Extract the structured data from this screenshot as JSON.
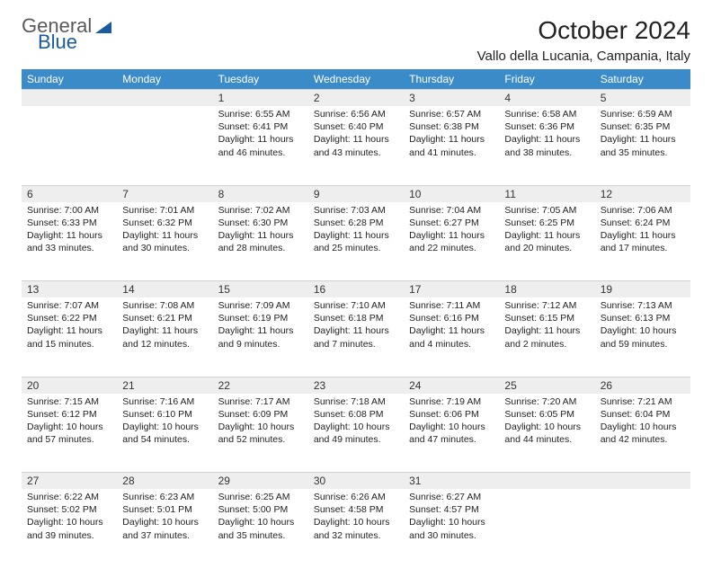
{
  "brand": {
    "word1": "General",
    "word2": "Blue"
  },
  "title": "October 2024",
  "location": "Vallo della Lucania, Campania, Italy",
  "colors": {
    "header_bg": "#3b8bc9",
    "header_fg": "#ffffff",
    "daynum_bg": "#eeeeee",
    "brand_blue": "#1a5a9e",
    "brand_gray": "#5a5a5a"
  },
  "dayNames": [
    "Sunday",
    "Monday",
    "Tuesday",
    "Wednesday",
    "Thursday",
    "Friday",
    "Saturday"
  ],
  "weeks": [
    [
      null,
      null,
      {
        "n": "1",
        "sr": "6:55 AM",
        "ss": "6:41 PM",
        "dl": "11 hours and 46 minutes."
      },
      {
        "n": "2",
        "sr": "6:56 AM",
        "ss": "6:40 PM",
        "dl": "11 hours and 43 minutes."
      },
      {
        "n": "3",
        "sr": "6:57 AM",
        "ss": "6:38 PM",
        "dl": "11 hours and 41 minutes."
      },
      {
        "n": "4",
        "sr": "6:58 AM",
        "ss": "6:36 PM",
        "dl": "11 hours and 38 minutes."
      },
      {
        "n": "5",
        "sr": "6:59 AM",
        "ss": "6:35 PM",
        "dl": "11 hours and 35 minutes."
      }
    ],
    [
      {
        "n": "6",
        "sr": "7:00 AM",
        "ss": "6:33 PM",
        "dl": "11 hours and 33 minutes."
      },
      {
        "n": "7",
        "sr": "7:01 AM",
        "ss": "6:32 PM",
        "dl": "11 hours and 30 minutes."
      },
      {
        "n": "8",
        "sr": "7:02 AM",
        "ss": "6:30 PM",
        "dl": "11 hours and 28 minutes."
      },
      {
        "n": "9",
        "sr": "7:03 AM",
        "ss": "6:28 PM",
        "dl": "11 hours and 25 minutes."
      },
      {
        "n": "10",
        "sr": "7:04 AM",
        "ss": "6:27 PM",
        "dl": "11 hours and 22 minutes."
      },
      {
        "n": "11",
        "sr": "7:05 AM",
        "ss": "6:25 PM",
        "dl": "11 hours and 20 minutes."
      },
      {
        "n": "12",
        "sr": "7:06 AM",
        "ss": "6:24 PM",
        "dl": "11 hours and 17 minutes."
      }
    ],
    [
      {
        "n": "13",
        "sr": "7:07 AM",
        "ss": "6:22 PM",
        "dl": "11 hours and 15 minutes."
      },
      {
        "n": "14",
        "sr": "7:08 AM",
        "ss": "6:21 PM",
        "dl": "11 hours and 12 minutes."
      },
      {
        "n": "15",
        "sr": "7:09 AM",
        "ss": "6:19 PM",
        "dl": "11 hours and 9 minutes."
      },
      {
        "n": "16",
        "sr": "7:10 AM",
        "ss": "6:18 PM",
        "dl": "11 hours and 7 minutes."
      },
      {
        "n": "17",
        "sr": "7:11 AM",
        "ss": "6:16 PM",
        "dl": "11 hours and 4 minutes."
      },
      {
        "n": "18",
        "sr": "7:12 AM",
        "ss": "6:15 PM",
        "dl": "11 hours and 2 minutes."
      },
      {
        "n": "19",
        "sr": "7:13 AM",
        "ss": "6:13 PM",
        "dl": "10 hours and 59 minutes."
      }
    ],
    [
      {
        "n": "20",
        "sr": "7:15 AM",
        "ss": "6:12 PM",
        "dl": "10 hours and 57 minutes."
      },
      {
        "n": "21",
        "sr": "7:16 AM",
        "ss": "6:10 PM",
        "dl": "10 hours and 54 minutes."
      },
      {
        "n": "22",
        "sr": "7:17 AM",
        "ss": "6:09 PM",
        "dl": "10 hours and 52 minutes."
      },
      {
        "n": "23",
        "sr": "7:18 AM",
        "ss": "6:08 PM",
        "dl": "10 hours and 49 minutes."
      },
      {
        "n": "24",
        "sr": "7:19 AM",
        "ss": "6:06 PM",
        "dl": "10 hours and 47 minutes."
      },
      {
        "n": "25",
        "sr": "7:20 AM",
        "ss": "6:05 PM",
        "dl": "10 hours and 44 minutes."
      },
      {
        "n": "26",
        "sr": "7:21 AM",
        "ss": "6:04 PM",
        "dl": "10 hours and 42 minutes."
      }
    ],
    [
      {
        "n": "27",
        "sr": "6:22 AM",
        "ss": "5:02 PM",
        "dl": "10 hours and 39 minutes."
      },
      {
        "n": "28",
        "sr": "6:23 AM",
        "ss": "5:01 PM",
        "dl": "10 hours and 37 minutes."
      },
      {
        "n": "29",
        "sr": "6:25 AM",
        "ss": "5:00 PM",
        "dl": "10 hours and 35 minutes."
      },
      {
        "n": "30",
        "sr": "6:26 AM",
        "ss": "4:58 PM",
        "dl": "10 hours and 32 minutes."
      },
      {
        "n": "31",
        "sr": "6:27 AM",
        "ss": "4:57 PM",
        "dl": "10 hours and 30 minutes."
      },
      null,
      null
    ]
  ],
  "labels": {
    "sunrise": "Sunrise:",
    "sunset": "Sunset:",
    "daylight": "Daylight:"
  }
}
